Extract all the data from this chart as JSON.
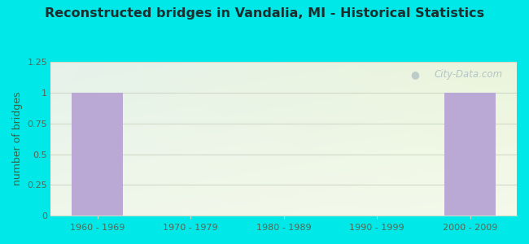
{
  "title": "Reconstructed bridges in Vandalia, MI - Historical Statistics",
  "categories": [
    "1960 - 1969",
    "1970 - 1979",
    "1980 - 1989",
    "1990 - 1999",
    "2000 - 2009"
  ],
  "values": [
    1,
    0,
    0,
    0,
    1
  ],
  "bar_color": "#b9a9d4",
  "ylabel": "number of bridges",
  "ylim": [
    0,
    1.25
  ],
  "yticks": [
    0,
    0.25,
    0.5,
    0.75,
    1,
    1.25
  ],
  "background_color": "#00e8e8",
  "plot_bg_gradient_colors": [
    "#e8f5e8",
    "#f5fff0"
  ],
  "title_color": "#1a3030",
  "axis_label_color": "#336644",
  "tick_color": "#556655",
  "grid_color": "#d0d8c8",
  "watermark": "City-Data.com",
  "watermark_color": "#a8bcc0",
  "spine_color": "#ccddcc",
  "figsize": [
    6.5,
    3.0
  ],
  "dpi": 100
}
